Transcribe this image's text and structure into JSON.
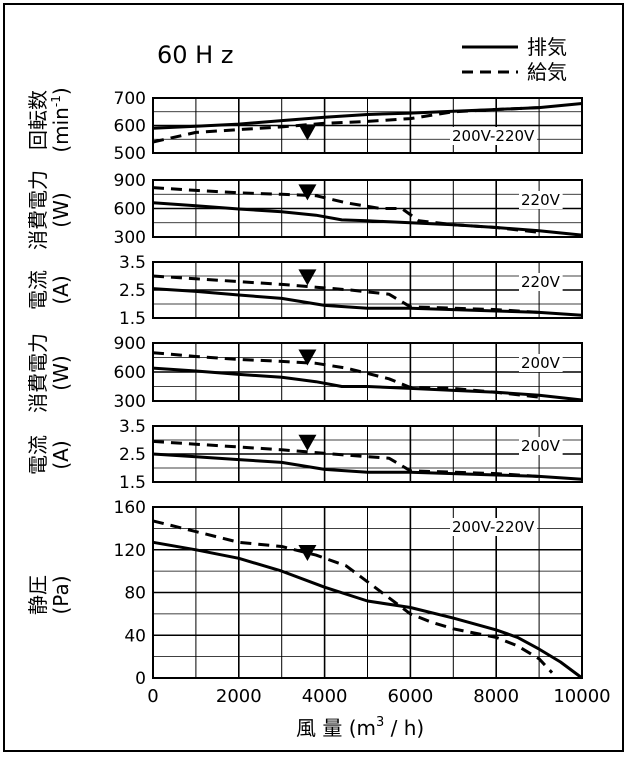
{
  "title": "60 H z",
  "legend": {
    "exhaust": "排気",
    "supply": "給気"
  },
  "xlabel": {
    "main": "風 量 (m",
    "sup": "3",
    "tail": " / h)"
  },
  "chart_data": [
    {
      "type": "line",
      "id": "rpm",
      "ylabel": "回転数",
      "unit": {
        "pre": "(min",
        "sup": "-1",
        "post": ")"
      },
      "voltage": "200V-220V",
      "ylim": [
        500,
        700
      ],
      "yticks": [
        500,
        600,
        700
      ],
      "xlim": [
        0,
        10000
      ],
      "series": [
        {
          "name": "排気",
          "style": "solid",
          "x": [
            0,
            1000,
            2000,
            3000,
            4000,
            5000,
            6000,
            7000,
            8000,
            9000,
            10000
          ],
          "y": [
            590,
            597,
            605,
            618,
            630,
            640,
            645,
            652,
            658,
            665,
            680
          ]
        },
        {
          "name": "給気",
          "style": "dashed",
          "x": [
            0,
            1000,
            2000,
            3000,
            4000,
            5000,
            6000,
            7000,
            8000,
            9000
          ],
          "y": [
            540,
            575,
            585,
            595,
            608,
            615,
            625,
            650,
            658,
            665
          ]
        }
      ],
      "marker": {
        "x": 3600,
        "y": 575
      }
    },
    {
      "type": "line",
      "id": "power220",
      "ylabel": "消費電力",
      "unit": {
        "pre": "(W)",
        "sup": "",
        "post": ""
      },
      "voltage": "220V",
      "ylim": [
        300,
        900
      ],
      "yticks": [
        300,
        600,
        900
      ],
      "xlim": [
        0,
        10000
      ],
      "series": [
        {
          "name": "排気",
          "style": "solid",
          "x": [
            0,
            1000,
            2000,
            3000,
            3800,
            4400,
            5000,
            6000,
            7000,
            8000,
            9000,
            10000
          ],
          "y": [
            660,
            630,
            595,
            565,
            530,
            480,
            470,
            450,
            430,
            400,
            365,
            320
          ]
        },
        {
          "name": "給気",
          "style": "dashed",
          "x": [
            0,
            1000,
            2000,
            3000,
            3800,
            4500,
            5300,
            5800,
            6200,
            7000,
            8000,
            9000
          ],
          "y": [
            820,
            790,
            765,
            750,
            735,
            660,
            600,
            600,
            470,
            430,
            400,
            350
          ]
        }
      ],
      "marker": {
        "x": 3600,
        "y": 770
      }
    },
    {
      "type": "line",
      "id": "current220",
      "ylabel": "電流",
      "unit": {
        "pre": "(A)",
        "sup": "",
        "post": ""
      },
      "voltage": "220V",
      "ylim": [
        1.5,
        3.5
      ],
      "yticks": [
        "1.5",
        "2.5",
        "3.5"
      ],
      "xlim": [
        0,
        10000
      ],
      "series": [
        {
          "name": "排気",
          "style": "solid",
          "x": [
            0,
            1000,
            2000,
            3000,
            4000,
            5000,
            6000,
            7000,
            8000,
            9000,
            10000
          ],
          "y": [
            2.55,
            2.45,
            2.32,
            2.2,
            1.95,
            1.85,
            1.85,
            1.8,
            1.75,
            1.7,
            1.6
          ]
        },
        {
          "name": "給気",
          "style": "dashed",
          "x": [
            0,
            1000,
            2000,
            3000,
            3800,
            4600,
            5500,
            6000,
            7000,
            8000,
            9000
          ],
          "y": [
            3.0,
            2.9,
            2.8,
            2.7,
            2.6,
            2.5,
            2.35,
            1.9,
            1.85,
            1.8,
            1.7
          ]
        }
      ],
      "marker": {
        "x": 3600,
        "y": 2.95
      }
    },
    {
      "type": "line",
      "id": "power200",
      "ylabel": "消費電力",
      "unit": {
        "pre": "(W)",
        "sup": "",
        "post": ""
      },
      "voltage": "200V",
      "ylim": [
        300,
        900
      ],
      "yticks": [
        300,
        600,
        900
      ],
      "xlim": [
        0,
        10000
      ],
      "series": [
        {
          "name": "排気",
          "style": "solid",
          "x": [
            0,
            1000,
            2000,
            3000,
            3800,
            4400,
            5000,
            6000,
            7000,
            8000,
            9000,
            10000
          ],
          "y": [
            640,
            610,
            575,
            545,
            500,
            450,
            450,
            430,
            410,
            390,
            360,
            310
          ]
        },
        {
          "name": "給気",
          "style": "dashed",
          "x": [
            0,
            1000,
            2000,
            3000,
            3800,
            4500,
            5500,
            6000,
            7000,
            8000,
            9000
          ],
          "y": [
            800,
            760,
            730,
            710,
            690,
            640,
            530,
            440,
            430,
            390,
            340
          ]
        }
      ],
      "marker": {
        "x": 3600,
        "y": 750
      }
    },
    {
      "type": "line",
      "id": "current200",
      "ylabel": "電流",
      "unit": {
        "pre": "(A)",
        "sup": "",
        "post": ""
      },
      "voltage": "200V",
      "ylim": [
        1.5,
        3.5
      ],
      "yticks": [
        "1.5",
        "2.5",
        "3.5"
      ],
      "xlim": [
        0,
        10000
      ],
      "series": [
        {
          "name": "排気",
          "style": "solid",
          "x": [
            0,
            1000,
            2000,
            3000,
            4000,
            5000,
            6000,
            7000,
            8000,
            9000,
            10000
          ],
          "y": [
            2.5,
            2.4,
            2.3,
            2.2,
            1.95,
            1.85,
            1.85,
            1.8,
            1.75,
            1.7,
            1.6
          ]
        },
        {
          "name": "給気",
          "style": "dashed",
          "x": [
            0,
            1000,
            2000,
            3000,
            3800,
            4600,
            5500,
            6000,
            7000,
            8000,
            9000
          ],
          "y": [
            2.95,
            2.85,
            2.75,
            2.65,
            2.55,
            2.45,
            2.35,
            1.9,
            1.85,
            1.8,
            1.7
          ]
        }
      ],
      "marker": {
        "x": 3600,
        "y": 2.9
      }
    },
    {
      "type": "line",
      "id": "pressure",
      "ylabel": "静圧",
      "unit": {
        "pre": "(Pa)",
        "sup": "",
        "post": ""
      },
      "voltage": "200V-220V",
      "ylim": [
        0,
        160
      ],
      "yticks": [
        0,
        40,
        80,
        120,
        160
      ],
      "xticks": [
        0,
        2000,
        4000,
        6000,
        8000,
        10000
      ],
      "xlim": [
        0,
        10000
      ],
      "series": [
        {
          "name": "排気",
          "style": "solid",
          "x": [
            0,
            1000,
            2000,
            3000,
            4000,
            5000,
            6000,
            7000,
            8000,
            8500,
            9000,
            9500,
            10000
          ],
          "y": [
            127,
            120,
            112,
            100,
            85,
            72,
            66,
            56,
            45,
            38,
            27,
            15,
            0
          ]
        },
        {
          "name": "給気",
          "style": "dashed",
          "x": [
            0,
            1000,
            2000,
            3000,
            3800,
            4500,
            5000,
            5500,
            6000,
            6500,
            7000,
            8000,
            8500,
            9000,
            9300
          ],
          "y": [
            147,
            137,
            127,
            123,
            115,
            105,
            90,
            75,
            60,
            52,
            46,
            38,
            30,
            18,
            5
          ]
        }
      ],
      "marker": {
        "x": 3600,
        "y": 117
      }
    }
  ]
}
